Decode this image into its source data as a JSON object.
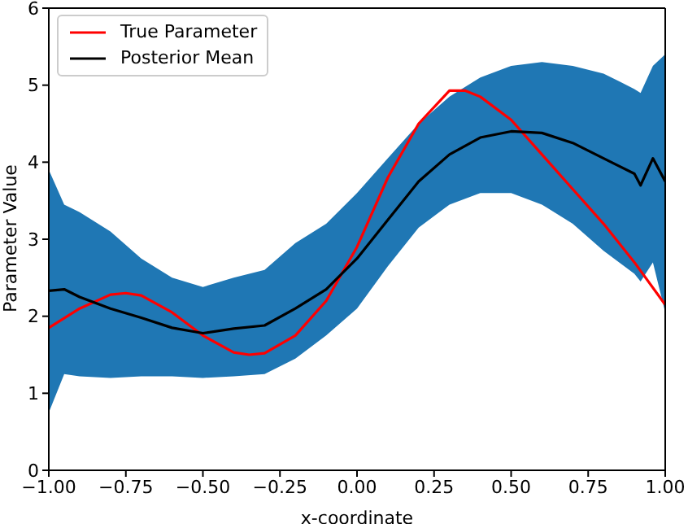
{
  "chart_data": {
    "type": "line",
    "xlabel": "x-coordinate",
    "ylabel": "Parameter Value",
    "xlim": [
      -1,
      1
    ],
    "ylim": [
      0,
      6
    ],
    "xticks": [
      {
        "value": -1,
        "label": "−1.00"
      },
      {
        "value": -0.75,
        "label": "−0.75"
      },
      {
        "value": -0.5,
        "label": "−0.50"
      },
      {
        "value": -0.25,
        "label": "−0.25"
      },
      {
        "value": 0,
        "label": "0.00"
      },
      {
        "value": 0.25,
        "label": "0.25"
      },
      {
        "value": 0.5,
        "label": "0.50"
      },
      {
        "value": 0.75,
        "label": "0.75"
      },
      {
        "value": 1,
        "label": "1.00"
      }
    ],
    "yticks": [
      0,
      1,
      2,
      3,
      4,
      5,
      6
    ],
    "grid": false,
    "legend": "top left",
    "marker": "none",
    "line_style": "solid",
    "series": [
      {
        "name": "True Parameter",
        "color": "#ff0000",
        "x": [
          -1,
          -0.9,
          -0.8,
          -0.75,
          -0.7,
          -0.6,
          -0.5,
          -0.4,
          -0.35,
          -0.3,
          -0.2,
          -0.1,
          0,
          0.1,
          0.2,
          0.3,
          0.35,
          0.4,
          0.5,
          0.6,
          0.7,
          0.8,
          0.9,
          1.0
        ],
        "values": [
          1.85,
          2.1,
          2.28,
          2.3,
          2.27,
          2.05,
          1.75,
          1.53,
          1.5,
          1.52,
          1.75,
          2.2,
          2.9,
          3.8,
          4.5,
          4.93,
          4.93,
          4.85,
          4.55,
          4.1,
          3.65,
          3.2,
          2.7,
          2.15
        ]
      },
      {
        "name": "Posterior Mean",
        "color": "#000000",
        "x": [
          -1,
          -0.95,
          -0.9,
          -0.8,
          -0.7,
          -0.6,
          -0.5,
          -0.4,
          -0.3,
          -0.2,
          -0.1,
          0,
          0.1,
          0.2,
          0.3,
          0.4,
          0.5,
          0.6,
          0.7,
          0.8,
          0.9,
          0.92,
          0.96,
          1.0
        ],
        "values": [
          2.33,
          2.35,
          2.25,
          2.1,
          1.98,
          1.85,
          1.78,
          1.84,
          1.88,
          2.1,
          2.35,
          2.75,
          3.25,
          3.75,
          4.1,
          4.32,
          4.4,
          4.38,
          4.25,
          4.05,
          3.85,
          3.7,
          4.05,
          3.75
        ],
        "upper": [
          3.9,
          3.45,
          3.35,
          3.1,
          2.75,
          2.5,
          2.38,
          2.5,
          2.6,
          2.95,
          3.2,
          3.6,
          4.05,
          4.5,
          4.85,
          5.1,
          5.25,
          5.3,
          5.25,
          5.15,
          4.95,
          4.9,
          5.25,
          5.4
        ],
        "lower": [
          0.75,
          1.25,
          1.22,
          1.2,
          1.22,
          1.22,
          1.2,
          1.22,
          1.25,
          1.45,
          1.75,
          2.1,
          2.65,
          3.15,
          3.45,
          3.6,
          3.6,
          3.45,
          3.2,
          2.85,
          2.55,
          2.45,
          2.7,
          2.05
        ]
      }
    ]
  }
}
